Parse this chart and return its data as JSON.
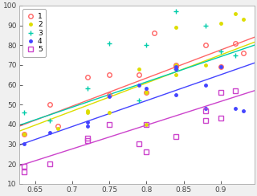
{
  "title": "",
  "xlim": [
    0.628,
    0.945
  ],
  "ylim": [
    10,
    100
  ],
  "xticks": [
    0.65,
    0.7,
    0.75,
    0.8,
    0.85,
    0.9
  ],
  "yticks": [
    10,
    20,
    30,
    40,
    50,
    60,
    70,
    80,
    90,
    100
  ],
  "series": [
    {
      "label": "1",
      "color": "#FF6666",
      "marker": "o",
      "markerfacecolor": "none",
      "markersize": 4,
      "x": [
        0.635,
        0.67,
        0.68,
        0.72,
        0.75,
        0.75,
        0.79,
        0.8,
        0.81,
        0.84,
        0.84,
        0.88,
        0.9,
        0.92,
        0.93
      ],
      "y": [
        35,
        50,
        39,
        64,
        55,
        65,
        65,
        56,
        86,
        69,
        70,
        80,
        69,
        81,
        76
      ],
      "fit": [
        0.628,
        0.945,
        39.0,
        84.0
      ]
    },
    {
      "label": "2",
      "color": "#DDDD00",
      "marker": ".",
      "markerfacecolor": "#DDDD00",
      "markersize": 5,
      "x": [
        0.635,
        0.68,
        0.72,
        0.72,
        0.75,
        0.79,
        0.8,
        0.8,
        0.84,
        0.84,
        0.84,
        0.88,
        0.9,
        0.92,
        0.93
      ],
      "y": [
        35,
        38,
        46,
        47,
        46,
        68,
        56,
        40,
        89,
        65,
        70,
        70,
        91,
        96,
        93
      ],
      "fit": [
        0.628,
        0.945,
        36.5,
        81.5
      ]
    },
    {
      "label": "3",
      "color": "#00CCAA",
      "marker": "+",
      "markerfacecolor": "#00CCAA",
      "markersize": 5,
      "x": [
        0.635,
        0.67,
        0.72,
        0.75,
        0.79,
        0.8,
        0.84,
        0.84,
        0.88,
        0.9,
        0.92
      ],
      "y": [
        46,
        42,
        58,
        81,
        52,
        80,
        97,
        68,
        90,
        77,
        75
      ],
      "fit": [
        0.628,
        0.945,
        39.5,
        80.0
      ]
    },
    {
      "label": "4",
      "color": "#4444FF",
      "marker": ".",
      "markerfacecolor": "#4444FF",
      "markersize": 5,
      "x": [
        0.635,
        0.67,
        0.72,
        0.72,
        0.75,
        0.79,
        0.8,
        0.84,
        0.84,
        0.84,
        0.88,
        0.88,
        0.9,
        0.92,
        0.93
      ],
      "y": [
        30,
        36,
        41,
        39,
        54,
        60,
        58,
        69,
        68,
        55,
        60,
        48,
        69,
        48,
        47
      ],
      "fit": [
        0.628,
        0.945,
        29.5,
        71.0
      ]
    },
    {
      "label": "5",
      "color": "#CC44CC",
      "marker": "s",
      "markerfacecolor": "none",
      "markersize": 4,
      "x": [
        0.635,
        0.635,
        0.67,
        0.72,
        0.72,
        0.75,
        0.79,
        0.8,
        0.8,
        0.84,
        0.88,
        0.88,
        0.9,
        0.9,
        0.92
      ],
      "y": [
        19,
        16,
        20,
        32,
        33,
        40,
        30,
        26,
        40,
        34,
        47,
        42,
        43,
        56,
        57
      ],
      "fit": [
        0.628,
        0.945,
        19.0,
        57.0
      ]
    }
  ],
  "legend_loc": "upper left",
  "figsize": [
    3.2,
    2.44
  ],
  "dpi": 100,
  "bg_color": "#f0f0f0"
}
